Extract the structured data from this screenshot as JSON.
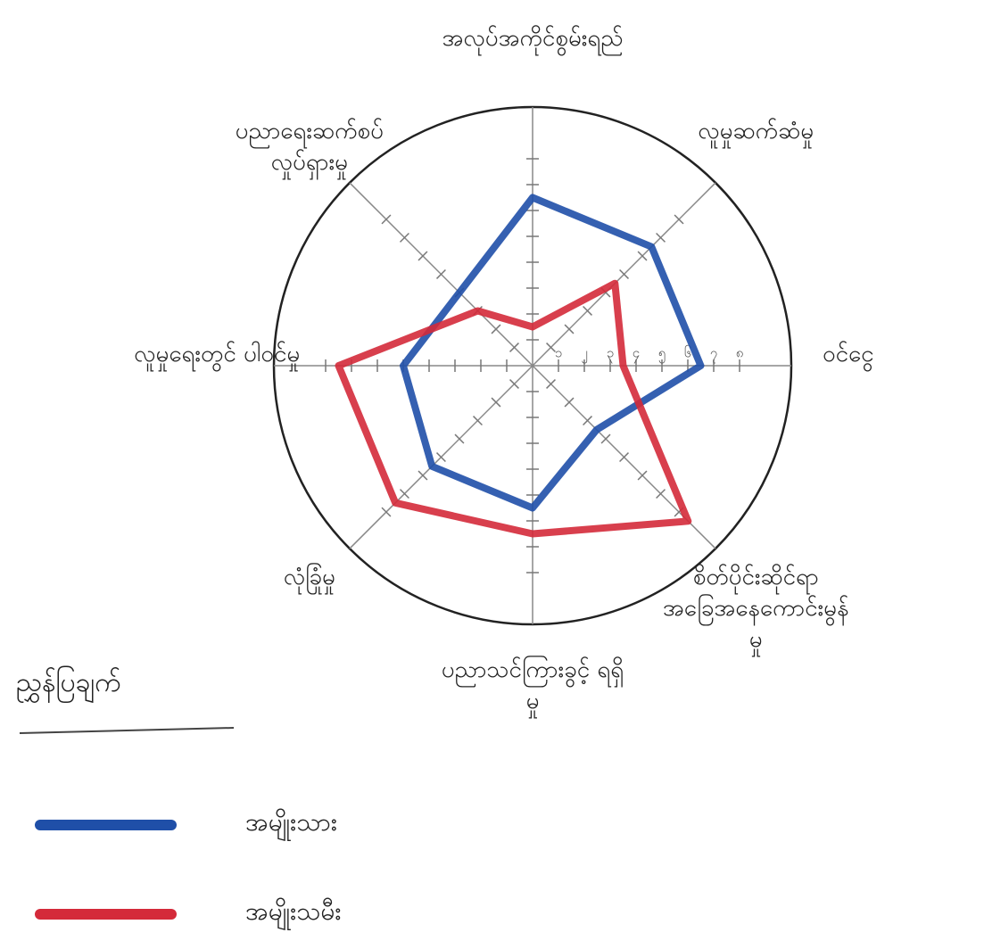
{
  "chart_data": {
    "type": "radar",
    "categories": [
      "အလုပ်အကိုင်စွမ်းရည်",
      "လူမှုဆက်ဆံမှု",
      "ဝင်ငွေ",
      "စိတ်ပိုင်းဆိုင်ရာ အခြေအနေကောင်းမွန်မှု",
      "ပညာသင်ကြားခွင့် ရရှိမှု",
      "လုံခြုံမှု",
      "လူမှုရေးတွင် ပါဝင်မှု",
      "ပညာရေးဆက်စပ် လှုပ်ရှားမှု"
    ],
    "series": [
      {
        "name": "အမျိုးသား",
        "color": "#1f4fa8",
        "values": [
          6.5,
          6.5,
          6.5,
          3.5,
          5.5,
          5.5,
          5,
          4
        ]
      },
      {
        "name": "အမျိုးသမီး",
        "color": "#d42a3a",
        "values": [
          1.5,
          4.5,
          3.5,
          8.5,
          6.5,
          7.5,
          7.5,
          3
        ]
      }
    ],
    "rlim": [
      0,
      10
    ],
    "rticks": [
      {
        "value": 1,
        "label": "၁"
      },
      {
        "value": 2,
        "label": "၂"
      },
      {
        "value": 3,
        "label": "၃"
      },
      {
        "value": 4,
        "label": "၄"
      },
      {
        "value": 5,
        "label": "၅"
      },
      {
        "value": 6,
        "label": "၆"
      },
      {
        "value": 7,
        "label": "၇"
      },
      {
        "value": 8,
        "label": "၈"
      }
    ],
    "legend_title": "ညွှန်ပြချက်"
  }
}
